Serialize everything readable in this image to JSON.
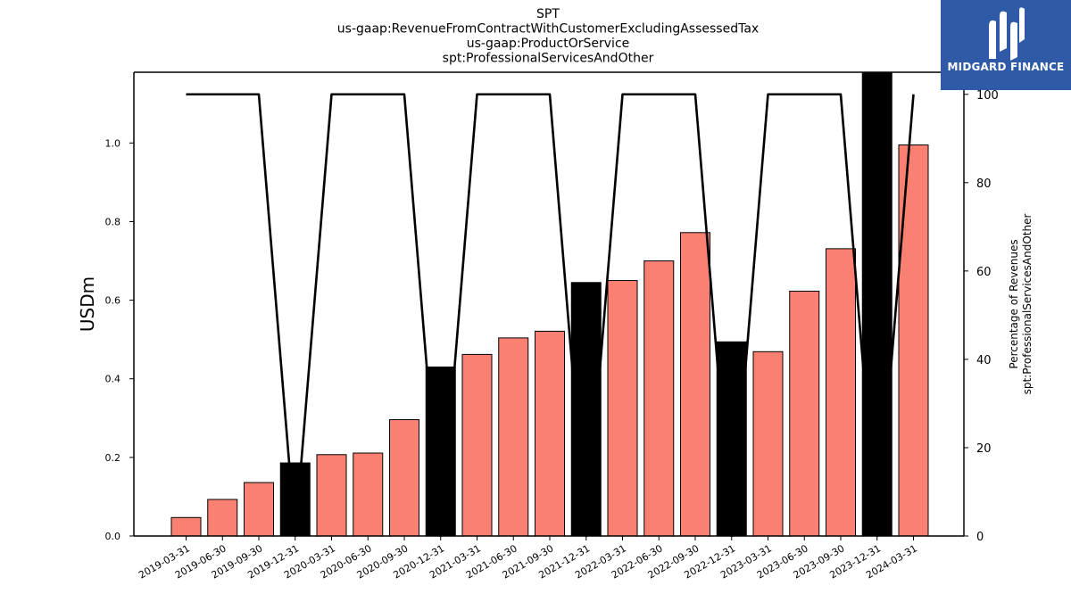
{
  "chart_data": {
    "type": "bar",
    "title_lines": [
      "SPT",
      "us-gaap:RevenueFromContractWithCustomerExcludingAssessedTax",
      "us-gaap:ProductOrService",
      "spt:ProfessionalServicesAndOther"
    ],
    "ylabel": "USDm",
    "ylabel_right": [
      "Percentage of Revenues",
      "spt:ProfessionalServicesAndOther"
    ],
    "ylim": [
      0,
      1.18
    ],
    "ylim_right": [
      0,
      105
    ],
    "yticks": [
      "0.0",
      "0.2",
      "0.4",
      "0.6",
      "0.8",
      "1.0"
    ],
    "yticks_right": [
      "0",
      "20",
      "40",
      "60",
      "80",
      "100"
    ],
    "categories": [
      "2019-03-31",
      "2019-06-30",
      "2019-09-30",
      "2019-12-31",
      "2020-03-31",
      "2020-06-30",
      "2020-09-30",
      "2020-12-31",
      "2021-03-31",
      "2021-06-30",
      "2021-09-30",
      "2021-12-31",
      "2022-03-31",
      "2022-06-30",
      "2022-09-30",
      "2022-12-31",
      "2023-03-31",
      "2023-06-30",
      "2023-09-30",
      "2023-12-31",
      "2024-03-31"
    ],
    "series": [
      {
        "kind": "bar",
        "values": [
          0.047,
          0.093,
          0.136,
          0.186,
          0.207,
          0.211,
          0.296,
          0.43,
          0.462,
          0.504,
          0.521,
          0.645,
          0.65,
          0.7,
          0.772,
          0.494,
          0.469,
          0.623,
          0.731,
          1.185,
          0.995
        ],
        "highlight": [
          false,
          false,
          false,
          true,
          false,
          false,
          false,
          true,
          false,
          false,
          false,
          true,
          false,
          false,
          false,
          true,
          false,
          false,
          false,
          true,
          false
        ]
      },
      {
        "kind": "line",
        "axis": "right",
        "values": [
          100,
          100,
          100,
          0,
          100,
          100,
          100,
          0,
          100,
          100,
          100,
          0,
          100,
          100,
          100,
          0,
          100,
          100,
          100,
          0,
          100
        ]
      }
    ],
    "colors": {
      "bar": "#fa8072",
      "highlight": "#000000",
      "line": "#000000",
      "edge": "#000000"
    },
    "grid": false
  },
  "logo": {
    "text": "MIDGARD FINANCE",
    "color": "#2f5aa8"
  }
}
